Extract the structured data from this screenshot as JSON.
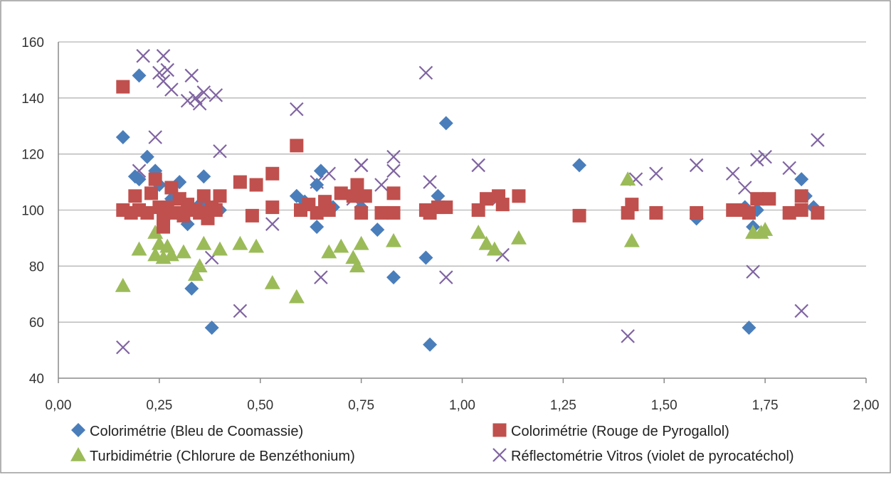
{
  "chart_data": {
    "type": "scatter",
    "title": "",
    "xlabel": "",
    "ylabel": "",
    "xlim": [
      0,
      2
    ],
    "ylim": [
      40,
      160
    ],
    "x_ticks": [
      "0,00",
      "0,25",
      "0,50",
      "0,75",
      "1,00",
      "1,25",
      "1,50",
      "1,75",
      "2,00"
    ],
    "y_ticks": [
      "40",
      "60",
      "80",
      "100",
      "120",
      "140",
      "160"
    ],
    "grid": "horizontal",
    "legend_position": "bottom",
    "series": [
      {
        "name": "Colorimétrie (Bleu de Coomassie)",
        "marker": "diamond",
        "color": "#4a7ebb",
        "points": [
          [
            0.16,
            126
          ],
          [
            0.19,
            112
          ],
          [
            0.2,
            148
          ],
          [
            0.2,
            111
          ],
          [
            0.22,
            119
          ],
          [
            0.24,
            114
          ],
          [
            0.25,
            109
          ],
          [
            0.27,
            98
          ],
          [
            0.28,
            104
          ],
          [
            0.3,
            110
          ],
          [
            0.32,
            95
          ],
          [
            0.33,
            72
          ],
          [
            0.35,
            102
          ],
          [
            0.36,
            112
          ],
          [
            0.38,
            58
          ],
          [
            0.4,
            100
          ],
          [
            0.59,
            105
          ],
          [
            0.61,
            103
          ],
          [
            0.64,
            94
          ],
          [
            0.64,
            109
          ],
          [
            0.65,
            114
          ],
          [
            0.68,
            101
          ],
          [
            0.75,
            101
          ],
          [
            0.79,
            93
          ],
          [
            0.83,
            76
          ],
          [
            0.91,
            83
          ],
          [
            0.92,
            52
          ],
          [
            0.94,
            105
          ],
          [
            0.96,
            131
          ],
          [
            1.29,
            116
          ],
          [
            1.58,
            97
          ],
          [
            1.7,
            101
          ],
          [
            1.71,
            58
          ],
          [
            1.72,
            94
          ],
          [
            1.73,
            100
          ],
          [
            1.84,
            111
          ],
          [
            1.85,
            105
          ],
          [
            1.87,
            101
          ]
        ]
      },
      {
        "name": "Colorimétrie (Rouge de Pyrogallol)",
        "marker": "square",
        "color": "#c0504d",
        "points": [
          [
            0.16,
            144
          ],
          [
            0.16,
            100
          ],
          [
            0.18,
            99
          ],
          [
            0.19,
            105
          ],
          [
            0.2,
            100
          ],
          [
            0.22,
            99
          ],
          [
            0.23,
            106
          ],
          [
            0.24,
            111
          ],
          [
            0.25,
            101
          ],
          [
            0.26,
            94
          ],
          [
            0.26,
            97
          ],
          [
            0.27,
            101
          ],
          [
            0.28,
            108
          ],
          [
            0.29,
            99
          ],
          [
            0.3,
            104
          ],
          [
            0.31,
            98
          ],
          [
            0.32,
            102
          ],
          [
            0.34,
            100
          ],
          [
            0.35,
            99
          ],
          [
            0.36,
            105
          ],
          [
            0.37,
            97
          ],
          [
            0.38,
            101
          ],
          [
            0.39,
            100
          ],
          [
            0.4,
            105
          ],
          [
            0.45,
            110
          ],
          [
            0.48,
            98
          ],
          [
            0.49,
            109
          ],
          [
            0.53,
            101
          ],
          [
            0.53,
            113
          ],
          [
            0.59,
            123
          ],
          [
            0.6,
            100
          ],
          [
            0.62,
            102
          ],
          [
            0.64,
            99
          ],
          [
            0.66,
            103
          ],
          [
            0.67,
            100
          ],
          [
            0.7,
            106
          ],
          [
            0.73,
            105
          ],
          [
            0.74,
            109
          ],
          [
            0.75,
            99
          ],
          [
            0.76,
            105
          ],
          [
            0.8,
            99
          ],
          [
            0.83,
            106
          ],
          [
            0.83,
            99
          ],
          [
            0.91,
            100
          ],
          [
            0.92,
            99
          ],
          [
            0.94,
            101
          ],
          [
            0.96,
            101
          ],
          [
            1.04,
            100
          ],
          [
            1.06,
            104
          ],
          [
            1.09,
            105
          ],
          [
            1.1,
            102
          ],
          [
            1.14,
            105
          ],
          [
            1.29,
            98
          ],
          [
            1.41,
            99
          ],
          [
            1.42,
            102
          ],
          [
            1.48,
            99
          ],
          [
            1.58,
            99
          ],
          [
            1.67,
            100
          ],
          [
            1.69,
            100
          ],
          [
            1.71,
            99
          ],
          [
            1.73,
            104
          ],
          [
            1.76,
            104
          ],
          [
            1.81,
            99
          ],
          [
            1.84,
            100
          ],
          [
            1.84,
            105
          ],
          [
            1.88,
            99
          ]
        ]
      },
      {
        "name": "Turbidimétrie (Chlorure de Benzéthonium)",
        "marker": "triangle",
        "color": "#9bbb59",
        "points": [
          [
            0.16,
            73
          ],
          [
            0.2,
            86
          ],
          [
            0.24,
            92
          ],
          [
            0.24,
            84
          ],
          [
            0.25,
            88
          ],
          [
            0.26,
            83
          ],
          [
            0.27,
            87
          ],
          [
            0.28,
            84
          ],
          [
            0.31,
            85
          ],
          [
            0.34,
            77
          ],
          [
            0.35,
            80
          ],
          [
            0.36,
            88
          ],
          [
            0.4,
            86
          ],
          [
            0.45,
            88
          ],
          [
            0.49,
            87
          ],
          [
            0.53,
            74
          ],
          [
            0.59,
            69
          ],
          [
            0.67,
            85
          ],
          [
            0.7,
            87
          ],
          [
            0.73,
            83
          ],
          [
            0.74,
            80
          ],
          [
            0.75,
            88
          ],
          [
            0.83,
            89
          ],
          [
            1.04,
            92
          ],
          [
            1.06,
            88
          ],
          [
            1.08,
            86
          ],
          [
            1.14,
            90
          ],
          [
            1.41,
            111
          ],
          [
            1.42,
            89
          ],
          [
            1.72,
            92
          ],
          [
            1.74,
            92
          ],
          [
            1.75,
            93
          ]
        ]
      },
      {
        "name": "Réflectométrie Vitros (violet de pyrocatéchol)",
        "marker": "cross",
        "color": "#8064a2",
        "points": [
          [
            0.16,
            51
          ],
          [
            0.2,
            114
          ],
          [
            0.21,
            155
          ],
          [
            0.24,
            126
          ],
          [
            0.25,
            149
          ],
          [
            0.26,
            155
          ],
          [
            0.26,
            146
          ],
          [
            0.27,
            150
          ],
          [
            0.28,
            143
          ],
          [
            0.3,
            104
          ],
          [
            0.32,
            139
          ],
          [
            0.33,
            148
          ],
          [
            0.34,
            140
          ],
          [
            0.35,
            138
          ],
          [
            0.36,
            142
          ],
          [
            0.38,
            83
          ],
          [
            0.39,
            141
          ],
          [
            0.4,
            121
          ],
          [
            0.45,
            64
          ],
          [
            0.53,
            95
          ],
          [
            0.59,
            136
          ],
          [
            0.64,
            110
          ],
          [
            0.65,
            76
          ],
          [
            0.67,
            113
          ],
          [
            0.73,
            104
          ],
          [
            0.75,
            116
          ],
          [
            0.75,
            116
          ],
          [
            0.8,
            109
          ],
          [
            0.83,
            114
          ],
          [
            0.83,
            119
          ],
          [
            0.91,
            149
          ],
          [
            0.92,
            110
          ],
          [
            0.96,
            76
          ],
          [
            1.04,
            116
          ],
          [
            1.09,
            104
          ],
          [
            1.1,
            84
          ],
          [
            1.41,
            55
          ],
          [
            1.43,
            111
          ],
          [
            1.48,
            113
          ],
          [
            1.58,
            116
          ],
          [
            1.67,
            113
          ],
          [
            1.7,
            108
          ],
          [
            1.72,
            78
          ],
          [
            1.73,
            118
          ],
          [
            1.75,
            119
          ],
          [
            1.81,
            115
          ],
          [
            1.84,
            64
          ],
          [
            1.88,
            125
          ]
        ]
      }
    ]
  }
}
